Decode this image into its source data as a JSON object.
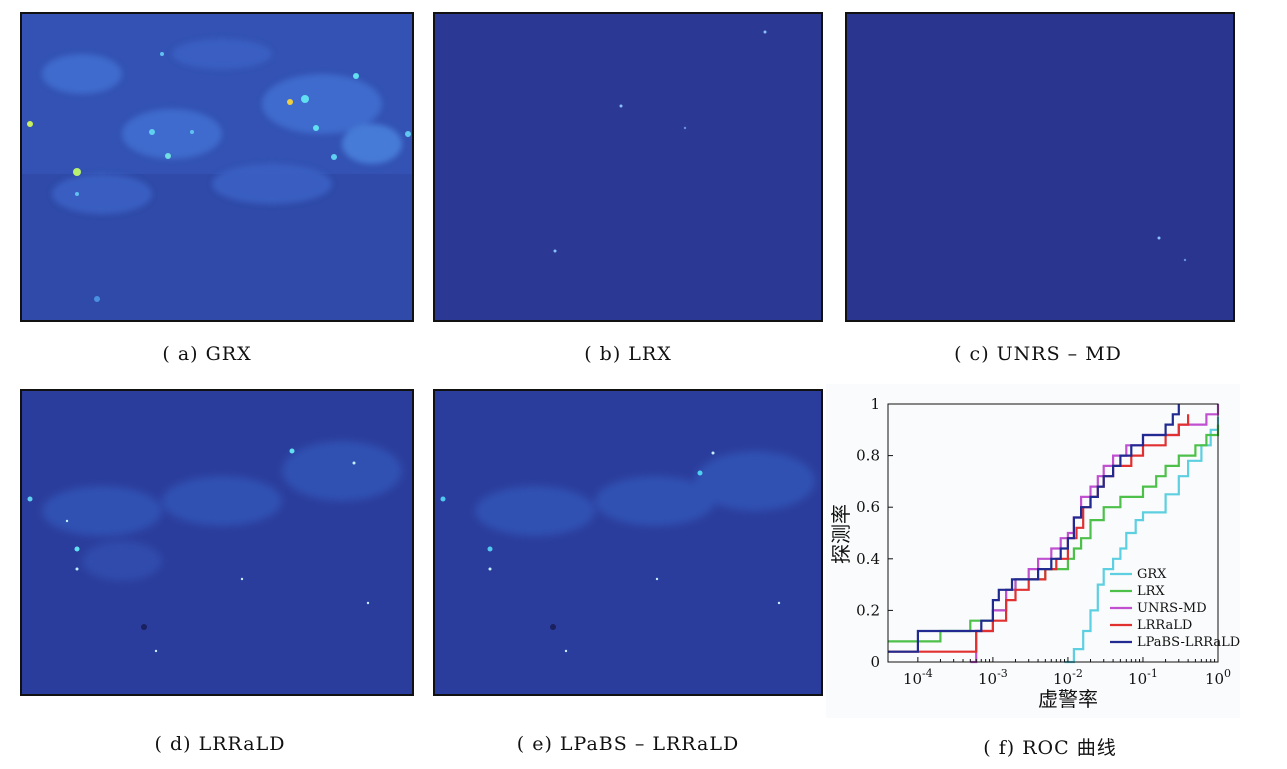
{
  "captions": {
    "a": "( a)  GRX",
    "b": "( b)  LRX",
    "c": "( c)  UNRS – MD",
    "d": "( d)  LRRaLD",
    "e": "( e)  LPaBS – LRRaLD",
    "f": "( f)  ROC 曲线"
  },
  "colors": {
    "background_map": "#2a3590",
    "GRX": "#5ccfe0",
    "LRX": "#4dc04a",
    "UNRS-MD": "#c050d0",
    "LRRaLD": "#e03030",
    "LPaBS-LRRaLD": "#202a90"
  },
  "chart_data": {
    "type": "line",
    "xscale": "log",
    "xlabel": "虚警率",
    "ylabel": "探测率",
    "xlim": [
      4e-05,
      1
    ],
    "ylim": [
      0,
      1
    ],
    "xticks": [
      "10-4",
      "10-3",
      "10-2",
      "10-1",
      "100"
    ],
    "yticks": [
      "0",
      "0.2",
      "0.4",
      "0.6",
      "0.8",
      "1"
    ],
    "legend_position": "lower-right",
    "series": [
      {
        "name": "GRX",
        "color": "#5ccfe0",
        "x": [
          0.009,
          0.012,
          0.016,
          0.02,
          0.025,
          0.03,
          0.04,
          0.05,
          0.06,
          0.08,
          0.1,
          0.15,
          0.2,
          0.3,
          0.4,
          0.6,
          0.8,
          1.0
        ],
        "y": [
          0,
          0.05,
          0.12,
          0.2,
          0.3,
          0.36,
          0.4,
          0.44,
          0.5,
          0.55,
          0.58,
          0.58,
          0.65,
          0.72,
          0.78,
          0.84,
          0.9,
          0.95
        ]
      },
      {
        "name": "LRX",
        "color": "#4dc04a",
        "x": [
          4e-05,
          8e-05,
          0.0002,
          0.0005,
          0.001,
          0.0015,
          0.002,
          0.003,
          0.005,
          0.007,
          0.01,
          0.012,
          0.015,
          0.02,
          0.03,
          0.05,
          0.08,
          0.1,
          0.15,
          0.2,
          0.3,
          0.5,
          0.7,
          1.0
        ],
        "y": [
          0.08,
          0.08,
          0.12,
          0.16,
          0.2,
          0.28,
          0.32,
          0.32,
          0.36,
          0.36,
          0.4,
          0.44,
          0.48,
          0.55,
          0.6,
          0.64,
          0.64,
          0.68,
          0.72,
          0.76,
          0.8,
          0.84,
          0.88,
          0.92
        ]
      },
      {
        "name": "UNRS-MD",
        "color": "#c050d0",
        "x": [
          0.0005,
          0.0006,
          0.001,
          0.0015,
          0.002,
          0.003,
          0.004,
          0.006,
          0.008,
          0.01,
          0.012,
          0.015,
          0.02,
          0.025,
          0.03,
          0.04,
          0.06,
          0.08,
          0.1,
          0.15,
          0.2,
          0.3,
          0.5,
          0.7,
          1.0
        ],
        "y": [
          0,
          0.12,
          0.2,
          0.28,
          0.32,
          0.36,
          0.4,
          0.44,
          0.48,
          0.5,
          0.56,
          0.64,
          0.68,
          0.72,
          0.76,
          0.8,
          0.84,
          0.84,
          0.88,
          0.88,
          0.88,
          0.92,
          0.92,
          0.96,
          1.0
        ]
      },
      {
        "name": "LRRaLD",
        "color": "#e03030",
        "x": [
          4e-05,
          0.0003,
          0.0006,
          0.001,
          0.0015,
          0.002,
          0.003,
          0.005,
          0.007,
          0.01,
          0.013,
          0.016,
          0.02,
          0.025,
          0.03,
          0.04,
          0.05,
          0.07,
          0.1,
          0.15,
          0.2,
          0.3,
          0.4
        ],
        "y": [
          0.04,
          0.04,
          0.12,
          0.16,
          0.24,
          0.28,
          0.32,
          0.36,
          0.4,
          0.48,
          0.52,
          0.6,
          0.64,
          0.68,
          0.72,
          0.76,
          0.76,
          0.8,
          0.84,
          0.84,
          0.88,
          0.92,
          0.96
        ]
      },
      {
        "name": "LPaBS-LRRaLD",
        "color": "#202a90",
        "x": [
          4e-05,
          0.0001,
          0.0007,
          0.001,
          0.0012,
          0.0018,
          0.0025,
          0.004,
          0.006,
          0.008,
          0.01,
          0.012,
          0.015,
          0.02,
          0.025,
          0.03,
          0.04,
          0.05,
          0.07,
          0.1,
          0.15,
          0.2,
          0.25,
          0.3
        ],
        "y": [
          0.04,
          0.12,
          0.16,
          0.24,
          0.28,
          0.32,
          0.32,
          0.36,
          0.4,
          0.44,
          0.48,
          0.56,
          0.6,
          0.64,
          0.68,
          0.72,
          0.76,
          0.8,
          0.84,
          0.88,
          0.88,
          0.92,
          0.96,
          1.0
        ]
      }
    ]
  }
}
